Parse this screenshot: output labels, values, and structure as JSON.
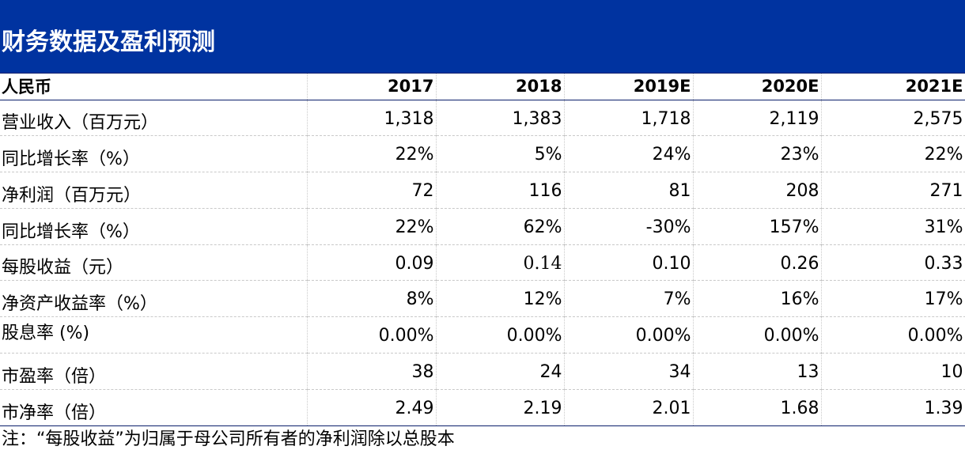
{
  "title": "财务数据及盈利预测",
  "header": {
    "label": "人民币",
    "years": [
      "2017",
      "2018",
      "2019E",
      "2020E",
      "2021E"
    ]
  },
  "rows": [
    {
      "label": "营业收入（百万元）",
      "values": [
        "1,318",
        "1,383",
        "1,718",
        "2,119",
        "2,575"
      ]
    },
    {
      "label": "同比增长率（%）",
      "values": [
        "22%",
        "5%",
        "24%",
        "23%",
        "22%"
      ]
    },
    {
      "label": "净利润（百万元）",
      "values": [
        "72",
        "116",
        "81",
        "208",
        "271"
      ]
    },
    {
      "label": "同比增长率（%）",
      "values": [
        "22%",
        "62%",
        "-30%",
        "157%",
        "31%"
      ]
    },
    {
      "label": "每股收益（元）",
      "values": [
        "0.09",
        "0.14",
        "0.10",
        "0.26",
        "0.33"
      ]
    },
    {
      "label": "净资产收益率（%）",
      "values": [
        "8%",
        "12%",
        "7%",
        "16%",
        "17%"
      ]
    },
    {
      "label": "股息率 (%)",
      "values": [
        "0.00%",
        "0.00%",
        "0.00%",
        "0.00%",
        "0.00%"
      ]
    },
    {
      "label": "市盈率（倍）",
      "values": [
        "38",
        "24",
        "34",
        "13",
        "10"
      ]
    },
    {
      "label": "市净率（倍）",
      "values": [
        "2.49",
        "2.19",
        "2.01",
        "1.68",
        "1.39"
      ]
    }
  ],
  "note": "注：“每股收益”为归属于母公司所有者的净利润除以总股本",
  "colors": {
    "title_bg": "#0033a0",
    "title_text": "#ffffff",
    "rule": "#0b1f6b",
    "grid": "#c9c9c9"
  }
}
